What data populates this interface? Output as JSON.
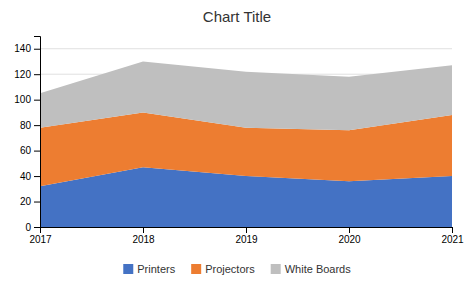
{
  "chart_data": {
    "type": "area",
    "stacked": true,
    "title": "Chart Title",
    "x": [
      2017,
      2018,
      2019,
      2020,
      2021
    ],
    "series": [
      {
        "name": "Printers",
        "color": "#4472C4",
        "values": [
          32,
          47,
          40,
          36,
          40
        ]
      },
      {
        "name": "Projectors",
        "color": "#ED7D31",
        "values": [
          46,
          43,
          38,
          40,
          48
        ]
      },
      {
        "name": "White Boards",
        "color": "#BFBFBF",
        "values": [
          27,
          40,
          44,
          42,
          39
        ]
      }
    ],
    "xlim": [
      2017,
      2021
    ],
    "xticks": [
      2017,
      2018,
      2019,
      2020,
      2021
    ],
    "ylim": [
      0,
      150
    ],
    "yticks": [
      0,
      20,
      40,
      60,
      80,
      100,
      120,
      140
    ],
    "grid": true,
    "legend": "bottom"
  }
}
